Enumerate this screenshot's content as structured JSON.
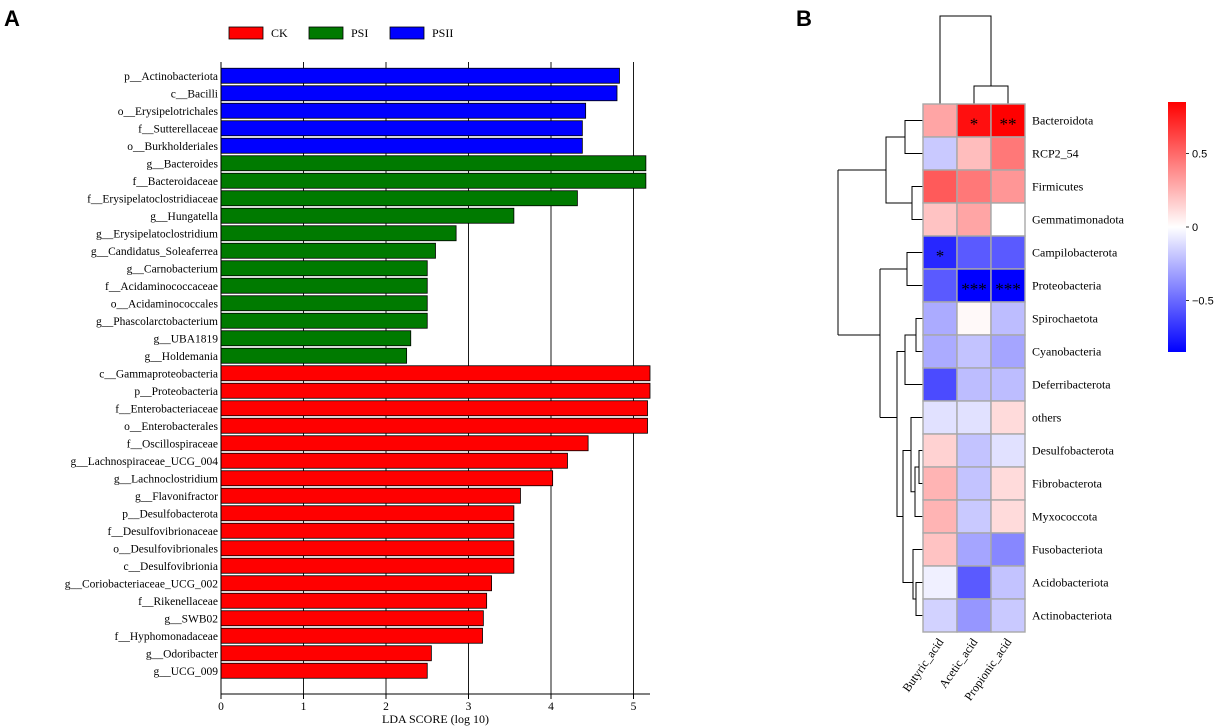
{
  "panels": {
    "a": "A",
    "b": "B"
  },
  "chart_data": [
    {
      "type": "bar",
      "orientation": "horizontal",
      "panel": "A",
      "xlabel": "LDA SCORE (log 10)",
      "xlim": [
        0,
        5.2
      ],
      "xticks": [
        0,
        1,
        2,
        3,
        4,
        5
      ],
      "grid": "vertical",
      "legend_position": "top",
      "legend": [
        {
          "name": "CK",
          "color": "#ff0000"
        },
        {
          "name": "PSI",
          "color": "#007a00"
        },
        {
          "name": "PSII",
          "color": "#0000ff"
        }
      ],
      "bars": [
        {
          "label": "p__Actinobacteriota",
          "value": 4.83,
          "group": "PSII"
        },
        {
          "label": "c__Bacilli",
          "value": 4.8,
          "group": "PSII"
        },
        {
          "label": "o__Erysipelotrichales",
          "value": 4.42,
          "group": "PSII"
        },
        {
          "label": "f__Sutterellaceae",
          "value": 4.38,
          "group": "PSII"
        },
        {
          "label": "o__Burkholderiales",
          "value": 4.38,
          "group": "PSII"
        },
        {
          "label": "g__Bacteroides",
          "value": 5.15,
          "group": "PSI"
        },
        {
          "label": "f__Bacteroidaceae",
          "value": 5.15,
          "group": "PSI"
        },
        {
          "label": "f__Erysipelatoclostridiaceae",
          "value": 4.32,
          "group": "PSI"
        },
        {
          "label": "g__Hungatella",
          "value": 3.55,
          "group": "PSI"
        },
        {
          "label": "g__Erysipelatoclostridium",
          "value": 2.85,
          "group": "PSI"
        },
        {
          "label": "g__Candidatus_Soleaferrea",
          "value": 2.6,
          "group": "PSI"
        },
        {
          "label": "g__Carnobacterium",
          "value": 2.5,
          "group": "PSI"
        },
        {
          "label": "f__Acidaminococcaceae",
          "value": 2.5,
          "group": "PSI"
        },
        {
          "label": "o__Acidaminococcales",
          "value": 2.5,
          "group": "PSI"
        },
        {
          "label": "g__Phascolarctobacterium",
          "value": 2.5,
          "group": "PSI"
        },
        {
          "label": "g__UBA1819",
          "value": 2.3,
          "group": "PSI"
        },
        {
          "label": "g__Holdemania",
          "value": 2.25,
          "group": "PSI"
        },
        {
          "label": "c__Gammaproteobacteria",
          "value": 5.2,
          "group": "CK"
        },
        {
          "label": "p__Proteobacteria",
          "value": 5.2,
          "group": "CK"
        },
        {
          "label": "f__Enterobacteriaceae",
          "value": 5.17,
          "group": "CK"
        },
        {
          "label": "o__Enterobacterales",
          "value": 5.17,
          "group": "CK"
        },
        {
          "label": "f__Oscillospiraceae",
          "value": 4.45,
          "group": "CK"
        },
        {
          "label": "g__Lachnospiraceae_UCG_004",
          "value": 4.2,
          "group": "CK"
        },
        {
          "label": "g__Lachnoclostridium",
          "value": 4.02,
          "group": "CK"
        },
        {
          "label": "g__Flavonifractor",
          "value": 3.63,
          "group": "CK"
        },
        {
          "label": "p__Desulfobacterota",
          "value": 3.55,
          "group": "CK"
        },
        {
          "label": "f__Desulfovibrionaceae",
          "value": 3.55,
          "group": "CK"
        },
        {
          "label": "o__Desulfovibrionales",
          "value": 3.55,
          "group": "CK"
        },
        {
          "label": "c__Desulfovibrionia",
          "value": 3.55,
          "group": "CK"
        },
        {
          "label": "g__Coriobacteriaceae_UCG_002",
          "value": 3.28,
          "group": "CK"
        },
        {
          "label": "f__Rikenellaceae",
          "value": 3.22,
          "group": "CK"
        },
        {
          "label": "g__SWB02",
          "value": 3.18,
          "group": "CK"
        },
        {
          "label": "f__Hyphomonadaceae",
          "value": 3.17,
          "group": "CK"
        },
        {
          "label": "g__Odoribacter",
          "value": 2.55,
          "group": "CK"
        },
        {
          "label": "g__UCG_009",
          "value": 2.5,
          "group": "CK"
        }
      ]
    },
    {
      "type": "heatmap",
      "panel": "B",
      "columns": [
        "Butyric_acid",
        "Acetic_acid",
        "Propionic_acid"
      ],
      "rows": [
        "Bacteroidota",
        "RCP2_54",
        "Firmicutes",
        "Gemmatimonadota",
        "Campilobacterota",
        "Proteobacteria",
        "Spirochaetota",
        "Cyanobacteria",
        "Deferribacterota",
        "others",
        "Desulfobacterota",
        "Fibrobacterota",
        "Myxococcota",
        "Fusobacteriota",
        "Acidobacteriota",
        "Actinobacteriota"
      ],
      "values": [
        [
          0.3,
          0.8,
          0.85
        ],
        [
          -0.18,
          0.22,
          0.45
        ],
        [
          0.55,
          0.45,
          0.35
        ],
        [
          0.2,
          0.3,
          0.0
        ],
        [
          -0.72,
          -0.55,
          -0.55
        ],
        [
          -0.55,
          -0.9,
          -0.9
        ],
        [
          -0.28,
          0.02,
          -0.22
        ],
        [
          -0.28,
          -0.2,
          -0.3
        ],
        [
          -0.6,
          -0.22,
          -0.22
        ],
        [
          -0.1,
          -0.1,
          0.12
        ],
        [
          0.15,
          -0.2,
          -0.1
        ],
        [
          0.25,
          -0.2,
          0.12
        ],
        [
          0.25,
          -0.18,
          0.12
        ],
        [
          0.2,
          -0.3,
          -0.4
        ],
        [
          -0.05,
          -0.55,
          -0.2
        ],
        [
          -0.15,
          -0.35,
          -0.18
        ]
      ],
      "significance": [
        [
          "",
          "*",
          "**"
        ],
        [
          "",
          "",
          ""
        ],
        [
          "",
          "",
          ""
        ],
        [
          "",
          "",
          ""
        ],
        [
          "*",
          "",
          ""
        ],
        [
          "",
          "***",
          "***"
        ],
        [
          "",
          "",
          ""
        ],
        [
          "",
          "",
          ""
        ],
        [
          "",
          "",
          ""
        ],
        [
          "",
          "",
          ""
        ],
        [
          "",
          "",
          ""
        ],
        [
          "",
          "",
          ""
        ],
        [
          "",
          "",
          ""
        ],
        [
          "",
          "",
          ""
        ],
        [
          "",
          "",
          ""
        ],
        [
          "",
          "",
          ""
        ]
      ],
      "colorbar": {
        "ticks": [
          {
            "value": 0.5,
            "label": "0.5"
          },
          {
            "value": 0,
            "label": "0"
          },
          {
            "value": -0.5,
            "label": "−0.5"
          }
        ],
        "min": -0.85,
        "max": 0.85,
        "low_color": "#0000ff",
        "mid_color": "#ffffff",
        "high_color": "#ff0000"
      }
    }
  ]
}
